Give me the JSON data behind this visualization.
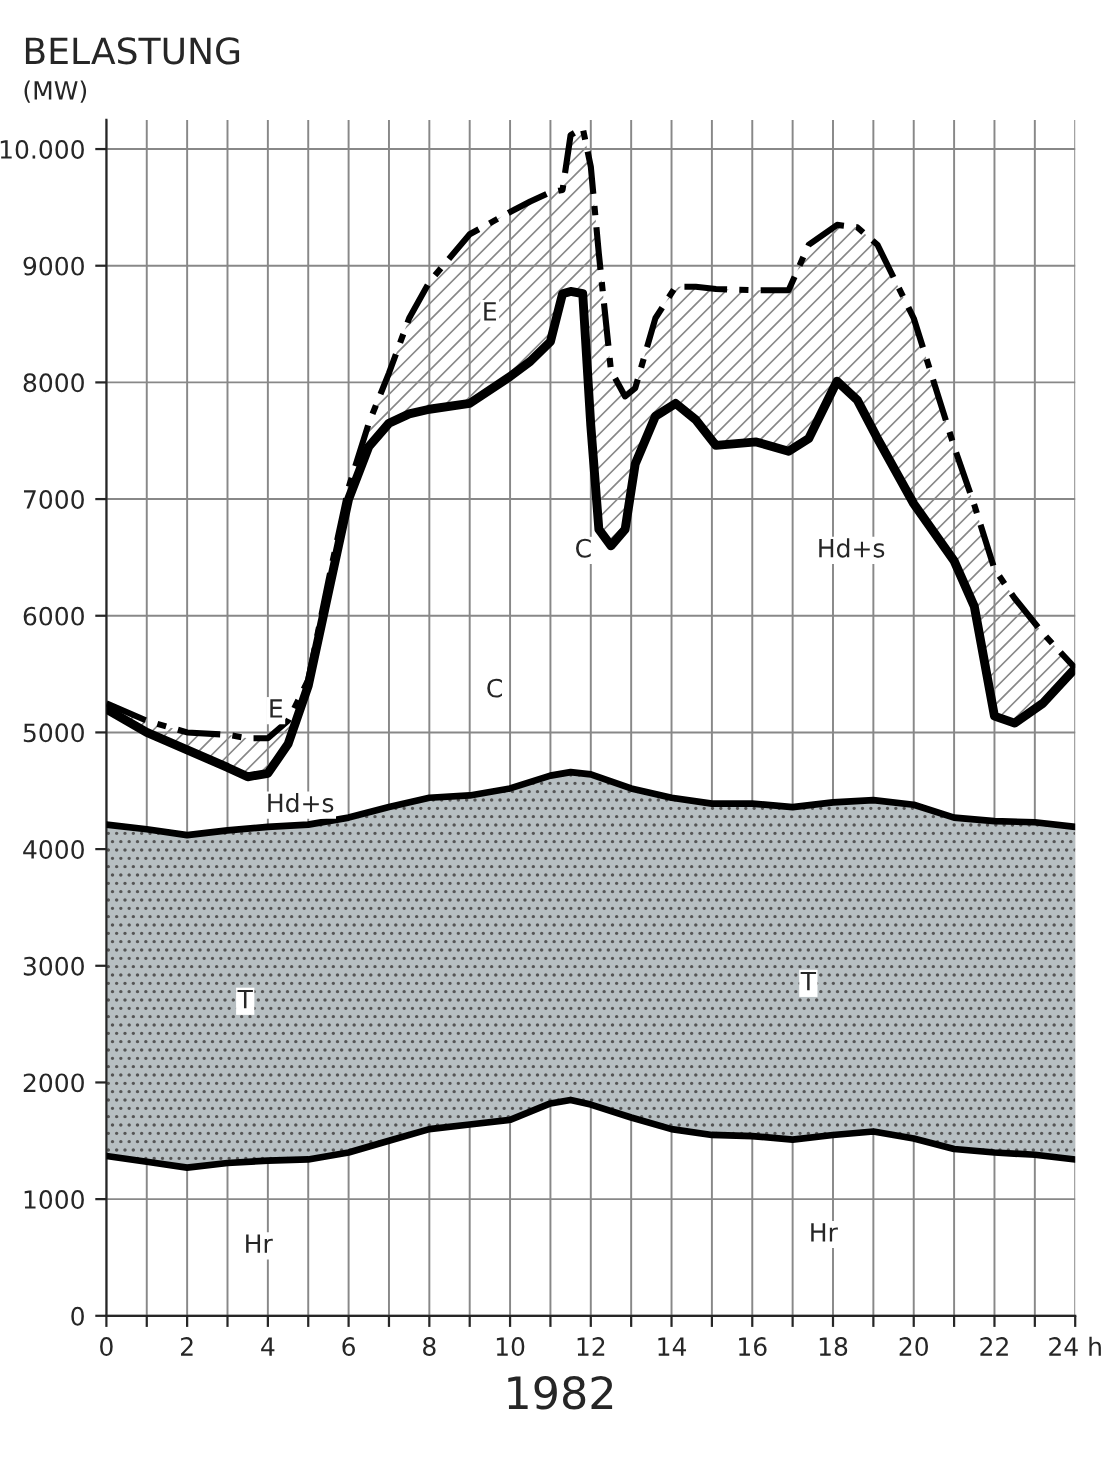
{
  "chart_data": {
    "type": "line",
    "title": "BELASTUNG",
    "ylabel": "(MW)",
    "xlim": [
      0,
      24
    ],
    "ylim": [
      0,
      10250
    ],
    "xticks": [
      0,
      {
        "value": 1,
        "label": null
      },
      2,
      {
        "value": 3,
        "label": null
      },
      4,
      {
        "value": 5,
        "label": null
      },
      6,
      {
        "value": 7,
        "label": null
      },
      8,
      {
        "value": 9,
        "label": null
      },
      10,
      {
        "value": 11,
        "label": null
      },
      12,
      {
        "value": 13,
        "label": null
      },
      14,
      {
        "value": 15,
        "label": null
      },
      16,
      {
        "value": 17,
        "label": null
      },
      18,
      {
        "value": 19,
        "label": null
      },
      20,
      {
        "value": 21,
        "label": null
      },
      22,
      {
        "value": 23,
        "label": null
      },
      {
        "value": 24,
        "label": "24 h"
      }
    ],
    "yticks": [
      0,
      1000,
      2000,
      3000,
      4000,
      5000,
      6000,
      7000,
      8000,
      9000,
      {
        "value": 10000,
        "label": "10.000"
      }
    ],
    "grid": true,
    "legend": false,
    "marker": "none",
    "x": [
      0,
      1,
      2,
      3,
      3.5,
      4,
      4.5,
      5,
      5.5,
      6,
      6.5,
      7,
      7.5,
      8,
      9,
      10,
      10.5,
      11,
      11.3,
      11.5,
      11.8,
      12,
      12.2,
      12.5,
      12.85,
      13.1,
      13.6,
      14.1,
      14.6,
      15.1,
      16.1,
      16.9,
      17.4,
      18.1,
      18.6,
      19.1,
      20,
      21,
      21.5,
      22,
      22.5,
      23.2,
      24
    ],
    "series": [
      {
        "color": "#000000",
        "line_style": "solid",
        "x": [
          0,
          1,
          2,
          3,
          4,
          5,
          6,
          7,
          8,
          9,
          10,
          11,
          11.5,
          12,
          13,
          14,
          15,
          16,
          17,
          18,
          19,
          20,
          21,
          22,
          23,
          24
        ],
        "values": [
          1370,
          1320,
          1270,
          1310,
          1330,
          1340,
          1400,
          1500,
          1600,
          1640,
          1680,
          1820,
          1850,
          1810,
          1700,
          1600,
          1550,
          1540,
          1510,
          1550,
          1580,
          1520,
          1430,
          1400,
          1380,
          1340
        ]
      },
      {
        "color": "#000000",
        "line_style": "solid",
        "x": [
          0,
          1,
          2,
          3,
          4,
          5,
          6,
          7,
          8,
          9,
          10,
          11,
          11.5,
          12,
          13,
          14,
          15,
          16,
          17,
          18,
          19,
          20,
          21,
          22,
          23,
          24
        ],
        "values": [
          4210,
          4170,
          4120,
          4160,
          4190,
          4210,
          4270,
          4360,
          4440,
          4460,
          4520,
          4630,
          4660,
          4640,
          4520,
          4440,
          4390,
          4390,
          4360,
          4400,
          4420,
          4380,
          4270,
          4240,
          4230,
          4190
        ],
        "lower": [
          1370,
          1320,
          1270,
          1310,
          1330,
          1340,
          1400,
          1500,
          1600,
          1640,
          1680,
          1820,
          1850,
          1810,
          1700,
          1600,
          1550,
          1540,
          1510,
          1550,
          1580,
          1520,
          1430,
          1400,
          1380,
          1340
        ],
        "upper": [
          4210,
          4170,
          4120,
          4160,
          4190,
          4210,
          4270,
          4360,
          4440,
          4460,
          4520,
          4630,
          4660,
          4640,
          4520,
          4440,
          4390,
          4390,
          4360,
          4400,
          4420,
          4380,
          4270,
          4240,
          4230,
          4190
        ]
      },
      {
        "color": "#000000",
        "line_style": "solid",
        "values": [
          5200,
          5000,
          4850,
          4700,
          4620,
          4650,
          4900,
          5400,
          6200,
          7000,
          7450,
          7650,
          7730,
          7770,
          7820,
          8050,
          8180,
          8350,
          8760,
          8780,
          8760,
          7630,
          6740,
          6600,
          6740,
          7300,
          7710,
          7820,
          7680,
          7460,
          7490,
          7410,
          7520,
          8010,
          7850,
          7520,
          6960,
          6470,
          6080,
          5140,
          5080,
          5250,
          5550
        ]
      },
      {
        "color": "#000000",
        "line_style": "dashed",
        "values": [
          5250,
          5100,
          5000,
          4980,
          4950,
          4950,
          5100,
          5450,
          6300,
          7100,
          7650,
          8080,
          8550,
          8860,
          9270,
          9460,
          9550,
          9630,
          9650,
          10120,
          10180,
          9850,
          9100,
          8100,
          7880,
          7950,
          8550,
          8820,
          8820,
          8800,
          8790,
          8790,
          9180,
          9350,
          9330,
          9180,
          8550,
          7450,
          6950,
          6400,
          6150,
          5850,
          5550
        ],
        "lower": [
          5200,
          5000,
          4850,
          4700,
          4620,
          4650,
          4900,
          5400,
          6200,
          7000,
          7450,
          7650,
          7730,
          7770,
          7820,
          8050,
          8180,
          8350,
          8760,
          8780,
          8760,
          7630,
          6740,
          6600,
          6740,
          7300,
          7710,
          7820,
          7680,
          7460,
          7490,
          7410,
          7520,
          8010,
          7850,
          7520,
          6960,
          6470,
          6080,
          5140,
          5080,
          5250,
          5550
        ],
        "upper": [
          5250,
          5100,
          5000,
          4980,
          4950,
          4950,
          5100,
          5450,
          6300,
          7100,
          7650,
          8080,
          8550,
          8860,
          9270,
          9460,
          9550,
          9630,
          9650,
          10120,
          10180,
          9850,
          9100,
          8100,
          7880,
          7950,
          8550,
          8820,
          8820,
          8800,
          8790,
          8790,
          9180,
          9350,
          9330,
          9180,
          8550,
          7450,
          6950,
          6400,
          6150,
          5850,
          5550
        ]
      }
    ],
    "annotations": [
      "E",
      "E",
      "C",
      "C",
      "Hd+s",
      "Hd+s",
      "T",
      "T",
      "Hr",
      "Hr",
      "1982"
    ]
  }
}
